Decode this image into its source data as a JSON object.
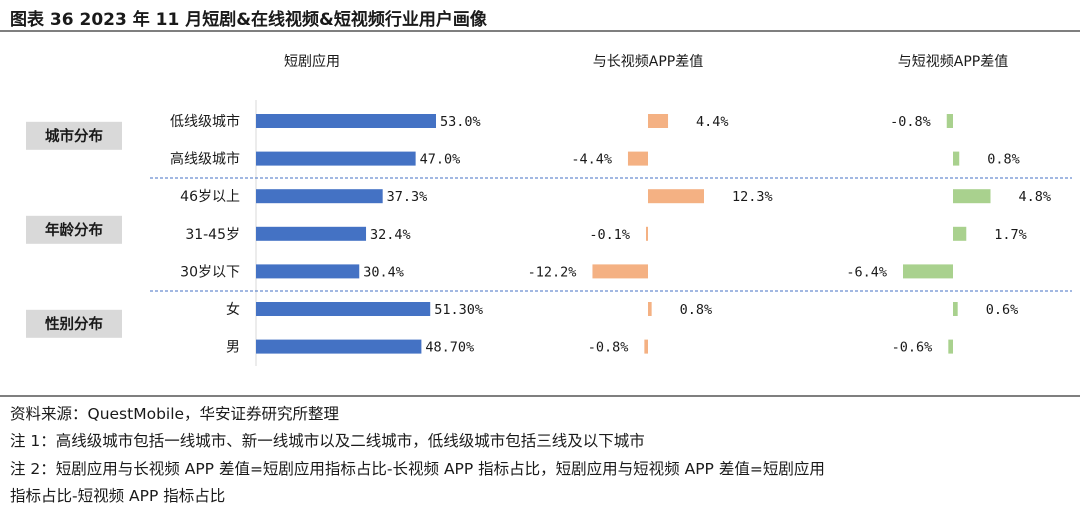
{
  "figure_title": "图表 36 2023 年 11 月短剧&在线视频&短视频行业用户画像",
  "chart_data": {
    "type": "bar",
    "orientation": "horizontal",
    "rows": [
      "低线级城市",
      "高线级城市",
      "46岁以上",
      "31-45岁",
      "30岁以下",
      "女",
      "男"
    ],
    "groups": [
      {
        "label": "城市分布",
        "rows": [
          0,
          1
        ]
      },
      {
        "label": "年龄分布",
        "rows": [
          2,
          3,
          4
        ]
      },
      {
        "label": "性别分布",
        "rows": [
          5,
          6
        ]
      }
    ],
    "panels": [
      {
        "title": "短剧应用",
        "unit": "%",
        "color": "#4472C4",
        "values": [
          53.0,
          47.0,
          37.3,
          32.4,
          30.4,
          51.3,
          48.7
        ],
        "labels": [
          "53.0%",
          "47.0%",
          "37.3%",
          "32.4%",
          "30.4%",
          "51.30%",
          "48.70%"
        ]
      },
      {
        "title": "与长视频APP差值",
        "unit": "%",
        "color": "#F4B183",
        "values": [
          4.4,
          -4.4,
          12.3,
          -0.1,
          -12.2,
          0.8,
          -0.8
        ],
        "labels": [
          "4.4%",
          "-4.4%",
          "12.3%",
          "-0.1%",
          "-12.2%",
          "0.8%",
          "-0.8%"
        ]
      },
      {
        "title": "与短视频APP差值",
        "unit": "%",
        "color": "#A9D18E",
        "values": [
          -0.8,
          0.8,
          4.8,
          1.7,
          -6.4,
          0.6,
          -0.6
        ],
        "labels": [
          "-0.8%",
          "0.8%",
          "4.8%",
          "1.7%",
          "-6.4%",
          "0.6%",
          "-0.6%"
        ]
      }
    ]
  },
  "footer": {
    "source": "资料来源：QuestMobile，华安证券研究所整理",
    "note1": "注 1：高线级城市包括一线城市、新一线城市以及二线城市，低线级城市包括三线及以下城市",
    "note2_line1": "注 2：短剧应用与长视频 APP 差值=短剧应用指标占比-长视频 APP 指标占比，短剧应用与短视频 APP 差值=短剧应用",
    "note2_line2": "指标占比-短视频 APP 指标占比"
  }
}
